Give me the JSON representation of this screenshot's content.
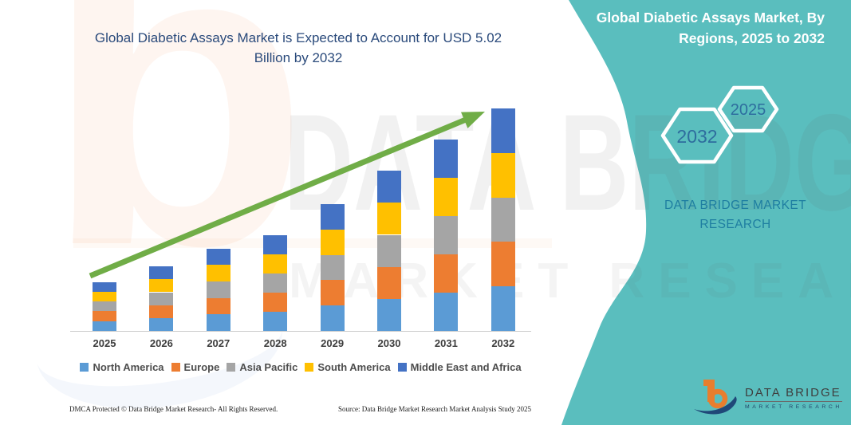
{
  "chart_panel": {
    "title": "Global Diabetic Assays Market is Expected to Account for USD 5.02 Billion by 2032",
    "footer_left": "DMCA Protected © Data Bridge Market Research-  All Rights Reserved.",
    "footer_right": "Source: Data Bridge Market Research  Market Analysis Study 2025"
  },
  "side_panel": {
    "title": "Global Diabetic Assays Market, By Regions, 2025 to 2032",
    "hexagons": [
      {
        "label": "2032"
      },
      {
        "label": "2025"
      }
    ],
    "brand_text": "DATA BRIDGE MARKET RESEARCH",
    "panel_color": "#5ABEBE",
    "brand_text_color": "#1E7EA1",
    "hex_label_color": "#2E6D9E"
  },
  "watermark": {
    "line1": "DATA BRIDGE",
    "line2": "MARKET RESEARCH",
    "letter": "b"
  },
  "logo": {
    "name": "DATA BRIDGE",
    "subtitle": "MARKET RESEARCH"
  },
  "chart_data": {
    "type": "bar",
    "stacked": true,
    "unit": "USD Billion",
    "title": "Global Diabetic Assays Market is Expected to Account for USD 5.02 Billion by 2032",
    "categories": [
      "2025",
      "2026",
      "2027",
      "2028",
      "2029",
      "2030",
      "2031",
      "2032"
    ],
    "series": [
      {
        "name": "North America",
        "color": "#5B9BD5",
        "values": [
          0.22,
          0.29,
          0.37,
          0.43,
          0.57,
          0.72,
          0.86,
          1.0
        ]
      },
      {
        "name": "Europe",
        "color": "#ED7D31",
        "values": [
          0.22,
          0.29,
          0.37,
          0.43,
          0.57,
          0.72,
          0.86,
          1.0
        ]
      },
      {
        "name": "Asia Pacific",
        "color": "#A5A5A5",
        "values": [
          0.22,
          0.29,
          0.37,
          0.43,
          0.57,
          0.72,
          0.86,
          1.0
        ]
      },
      {
        "name": "South America",
        "color": "#FFC000",
        "values": [
          0.22,
          0.29,
          0.37,
          0.43,
          0.57,
          0.72,
          0.86,
          1.0
        ]
      },
      {
        "name": "Middle East and Africa",
        "color": "#4472C4",
        "values": [
          0.22,
          0.29,
          0.37,
          0.43,
          0.57,
          0.72,
          0.86,
          1.0
        ]
      }
    ],
    "totals": [
      1.1,
      1.45,
      1.85,
      2.15,
      2.85,
      3.6,
      4.3,
      5.02
    ],
    "ylim": [
      0,
      5.2
    ],
    "grid": false,
    "legend_position": "bottom",
    "trend_arrow": true,
    "trend_arrow_color": "#70AD47",
    "xlabel": "",
    "ylabel": ""
  }
}
